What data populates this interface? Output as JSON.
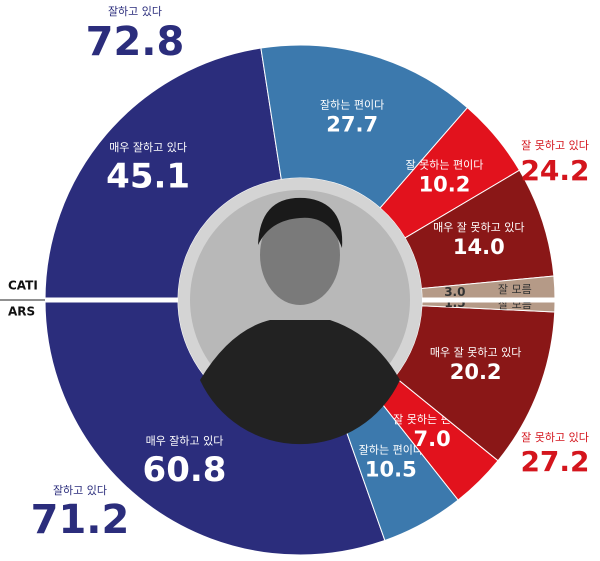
{
  "chart_data": {
    "type": "split-donut",
    "categories": [
      "매우 잘하고 있다",
      "잘하는 편이다",
      "잘 못하는 편이다",
      "매우 잘 못하고 있다",
      "잘 모름"
    ],
    "colors": [
      "#2b2d7c",
      "#3c79ad",
      "#e2121d",
      "#8a1717",
      "#b59a87"
    ],
    "series": [
      {
        "name": "CATI",
        "half": "top",
        "values": [
          45.1,
          27.7,
          10.2,
          14.0,
          3.0
        ],
        "value_labels": [
          "45.1",
          "27.7",
          "10.2",
          "14.0",
          "3.0"
        ],
        "summaries": [
          {
            "label": "잘하고 있다",
            "value": 72.8
          },
          {
            "label": "잘 못하고 있다",
            "value": 24.2
          }
        ]
      },
      {
        "name": "ARS",
        "half": "bottom",
        "values": [
          60.8,
          10.5,
          7.0,
          20.2,
          1.5
        ],
        "value_labels": [
          "60.8",
          "10.5",
          "7.0",
          "20.2",
          "1.5"
        ],
        "summaries": [
          {
            "label": "잘하고 있다",
            "value": 71.2
          },
          {
            "label": "잘 못하고 있다",
            "value": 27.2
          }
        ]
      }
    ]
  }
}
